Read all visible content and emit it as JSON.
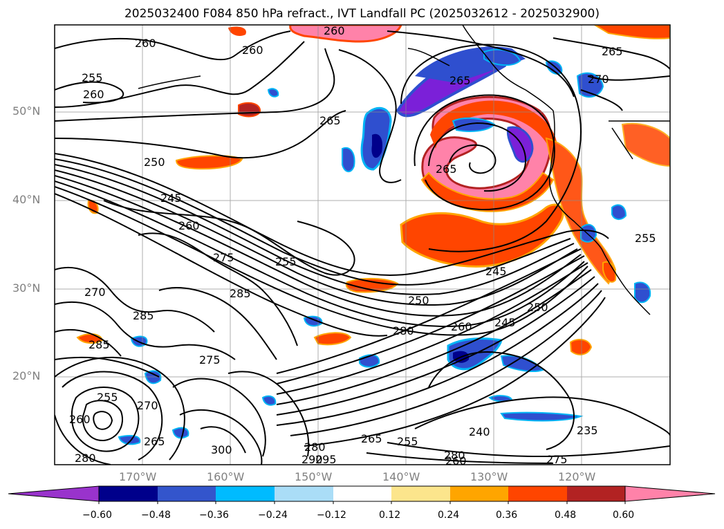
{
  "title": "2025032400 F084 850 hPa refract., IVT Landfall PC (2025032612 - 2025032900)",
  "map": {
    "lat_labels": [
      "50°N",
      "40°N",
      "30°N",
      "20°N"
    ],
    "lon_labels": [
      "170°W",
      "160°W",
      "150°W",
      "140°W",
      "130°W",
      "120°W"
    ],
    "contour_labels": [
      "260",
      "260",
      "265",
      "255",
      "260",
      "265",
      "260",
      "265",
      "270",
      "250",
      "245",
      "260",
      "255",
      "275",
      "265",
      "245",
      "250",
      "270",
      "285",
      "250",
      "280",
      "245",
      "260",
      "285",
      "275",
      "255",
      "260",
      "270",
      "265",
      "285",
      "300",
      "280",
      "290",
      "295",
      "280",
      "265",
      "255",
      "260",
      "240",
      "235",
      "275",
      "255",
      "280"
    ],
    "colors": {
      "deep_purple": "#7b20d8",
      "navy": "#00008b",
      "royal_blue": "#2f4fcf",
      "sky_blue": "#00b4f5",
      "light_blue": "#a9def7",
      "pale_yellow": "#fce58c",
      "orange": "#ffa500",
      "red_orange": "#ff4500",
      "dark_red": "#b22222",
      "pink": "#ff82a9"
    }
  },
  "colorbar": {
    "ticks": [
      "−0.60",
      "−0.48",
      "−0.36",
      "−0.24",
      "−0.12",
      "0.12",
      "0.24",
      "0.36",
      "0.48",
      "0.60"
    ],
    "colors": [
      "#9933cc",
      "#00008b",
      "#3355cc",
      "#00bbff",
      "#aaddf7",
      "#ffffff",
      "#fce58c",
      "#ffa500",
      "#ff4500",
      "#b22222",
      "#ff82a9"
    ]
  }
}
